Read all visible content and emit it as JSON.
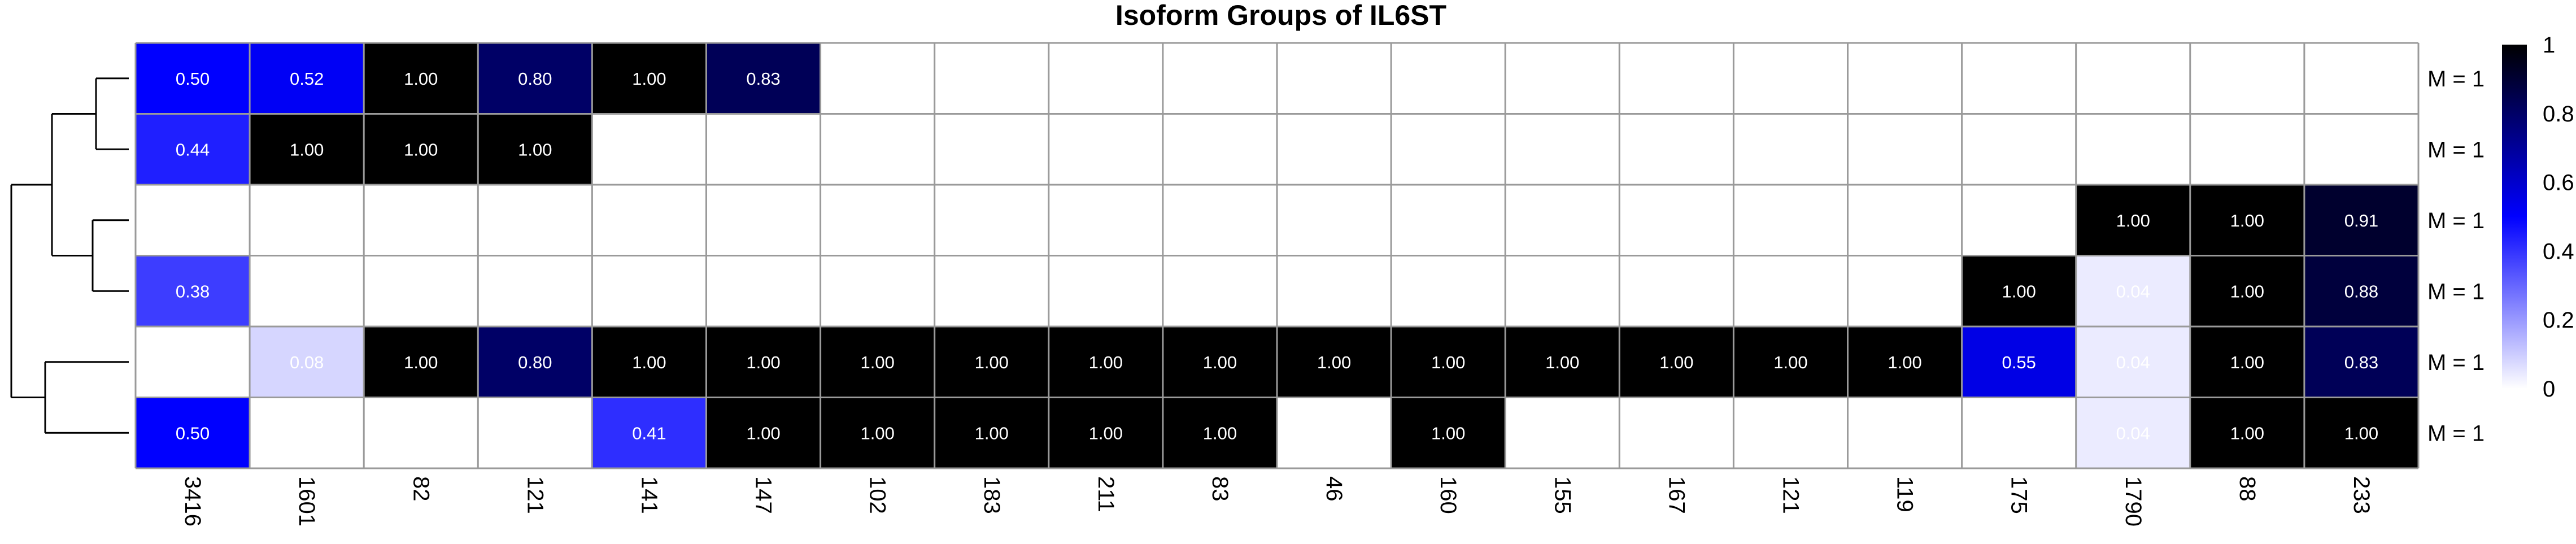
{
  "chart_data": {
    "type": "heatmap",
    "title": "Isoform Groups of IL6ST",
    "columns": [
      "3416",
      "1601",
      "82",
      "121",
      "141",
      "147",
      "102",
      "183",
      "211",
      "83",
      "46",
      "160",
      "155",
      "167",
      "121",
      "119",
      "175",
      "1790",
      "88",
      "233"
    ],
    "rows": [
      "M = 1",
      "M = 1",
      "M = 1",
      "M = 1",
      "M = 1",
      "M = 1"
    ],
    "values": [
      [
        0.5,
        0.52,
        1.0,
        0.8,
        1.0,
        0.83,
        null,
        null,
        null,
        null,
        null,
        null,
        null,
        null,
        null,
        null,
        null,
        null,
        null,
        null
      ],
      [
        0.44,
        1.0,
        1.0,
        1.0,
        null,
        null,
        null,
        null,
        null,
        null,
        null,
        null,
        null,
        null,
        null,
        null,
        null,
        null,
        null,
        null
      ],
      [
        null,
        null,
        null,
        null,
        null,
        null,
        null,
        null,
        null,
        null,
        null,
        null,
        null,
        null,
        null,
        null,
        null,
        1.0,
        1.0,
        0.91
      ],
      [
        0.38,
        null,
        null,
        null,
        null,
        null,
        null,
        null,
        null,
        null,
        null,
        null,
        null,
        null,
        null,
        null,
        1.0,
        0.04,
        1.0,
        0.88
      ],
      [
        null,
        0.08,
        1.0,
        0.8,
        1.0,
        1.0,
        1.0,
        1.0,
        1.0,
        1.0,
        1.0,
        1.0,
        1.0,
        1.0,
        1.0,
        1.0,
        0.55,
        0.04,
        1.0,
        0.83
      ],
      [
        0.5,
        null,
        null,
        null,
        0.41,
        1.0,
        1.0,
        1.0,
        1.0,
        1.0,
        null,
        1.0,
        null,
        null,
        null,
        null,
        null,
        0.04,
        1.0,
        1.0
      ]
    ],
    "colorbar": {
      "min": 0,
      "max": 1,
      "ticks": [
        "0",
        "0.2",
        "0.4",
        "0.6",
        "0.8",
        "1"
      ],
      "colors": [
        "#ffffff",
        "#0000ff",
        "#000000"
      ]
    },
    "row_dendrogram": "left",
    "colors": {
      "grid": "#9a9a9a",
      "text_dark": "#000000",
      "text_light": "#ffffff"
    }
  }
}
